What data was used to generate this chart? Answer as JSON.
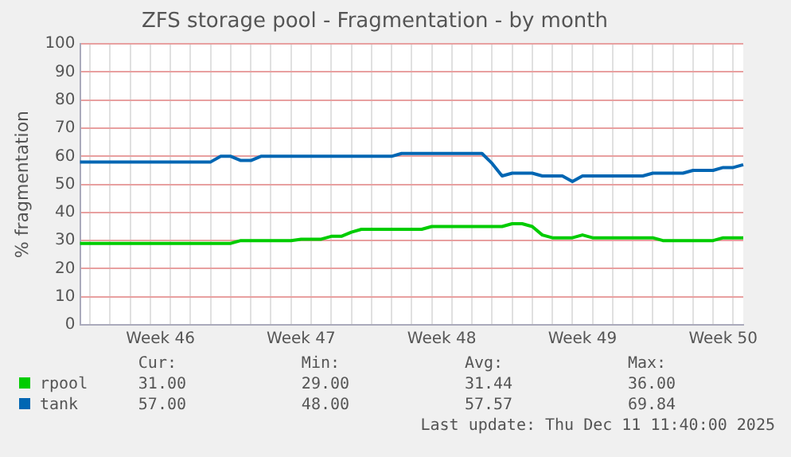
{
  "chart_data": {
    "type": "line",
    "title": "ZFS storage pool - Fragmentation - by month",
    "ylabel": "% fragmentation",
    "categories": [
      null,
      null,
      null,
      null,
      null,
      null,
      null,
      null,
      "Week 46",
      null,
      null,
      null,
      null,
      null,
      null,
      null,
      null,
      null,
      null,
      null,
      null,
      null,
      "Week 47",
      null,
      null,
      null,
      null,
      null,
      null,
      null,
      null,
      null,
      null,
      null,
      null,
      null,
      "Week 48",
      null,
      null,
      null,
      null,
      null,
      null,
      null,
      null,
      null,
      null,
      null,
      null,
      null,
      "Week 49",
      null,
      null,
      null,
      null,
      null,
      null,
      null,
      null,
      null,
      null,
      null,
      null,
      null,
      "Week 50",
      null,
      null
    ],
    "ylim": [
      0,
      100
    ],
    "yticks": [
      0,
      10,
      20,
      30,
      40,
      50,
      60,
      70,
      80,
      90,
      100
    ],
    "grid": true,
    "legend": "bottom",
    "marker": "none",
    "line_style": "solid",
    "series": [
      {
        "name": "rpool",
        "color": "#00cc00",
        "values": [
          29,
          29,
          29,
          29,
          29,
          29,
          29,
          29,
          29,
          29,
          29,
          29,
          29,
          29,
          29,
          29,
          30,
          30,
          30,
          30,
          30,
          30,
          30.5,
          30.5,
          30.5,
          31.5,
          31.5,
          33,
          34,
          34,
          34,
          34,
          34,
          34,
          34,
          35,
          35,
          35,
          35,
          35,
          35,
          35,
          35,
          36,
          36,
          35,
          32,
          31,
          31,
          31,
          32,
          31,
          31,
          31,
          31,
          31,
          31,
          31,
          30,
          30,
          30,
          30,
          30,
          30,
          31,
          31,
          31
        ]
      },
      {
        "name": "tank",
        "color": "#0066b3",
        "values": [
          58,
          58,
          58,
          58,
          58,
          58,
          58,
          58,
          58,
          58,
          58,
          58,
          58,
          58,
          60,
          60,
          58.5,
          58.5,
          60,
          60,
          60,
          60,
          60,
          60,
          60,
          60,
          60,
          60,
          60,
          60,
          60,
          60,
          61,
          61,
          61,
          61,
          61,
          61,
          61,
          61,
          61,
          57.5,
          53,
          54,
          54,
          54,
          53,
          53,
          53,
          51,
          53,
          53,
          53,
          53,
          53,
          53,
          53,
          54,
          54,
          54,
          54,
          55,
          55,
          55,
          56,
          56,
          57
        ]
      }
    ],
    "annotations": [
      "Cur:",
      "Min:",
      "Avg:",
      "Max:",
      "31.00",
      "29.00",
      "31.44",
      "36.00",
      "57.00",
      "48.00",
      "57.57",
      "69.84",
      "Last update: Thu Dec 11 11:40:00 2025"
    ]
  }
}
